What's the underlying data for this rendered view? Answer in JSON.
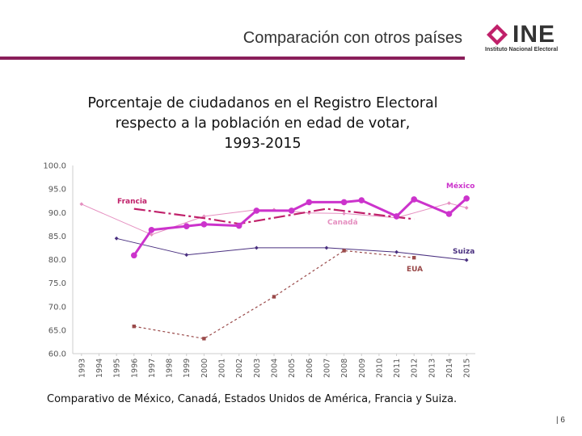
{
  "header": {
    "title": "Comparación con otros países",
    "logo_text": "INE",
    "logo_subtitle": "Instituto Nacional Electoral",
    "accent_color": "#8a1e5a"
  },
  "chart_title_lines": [
    "Porcentaje de ciudadanos en el Registro Electoral",
    "respecto a la población en edad de votar,",
    "1993-2015"
  ],
  "caption": "Comparativo de México, Canadá, Estados Unidos de América, Francia y Suiza.",
  "page_number": "| 6",
  "chart_data": {
    "type": "line",
    "title": "Porcentaje de ciudadanos en el Registro Electoral respecto a la población en edad de votar, 1993-2015",
    "xlabel": "",
    "ylabel": "",
    "ylim": [
      60,
      100
    ],
    "yticks": [
      "60.0",
      "65.0",
      "70.0",
      "75.0",
      "80.0",
      "85.0",
      "90.0",
      "95.0",
      "100.0"
    ],
    "x": [
      "1993",
      "1994",
      "1995",
      "1996",
      "1997",
      "1998",
      "1999",
      "2000",
      "2001",
      "2002",
      "2003",
      "2004",
      "2005",
      "2006",
      "2007",
      "2008",
      "2009",
      "2010",
      "2011",
      "2012",
      "2013",
      "2014",
      "2015"
    ],
    "series": [
      {
        "name": "México",
        "color": "#cc33cc",
        "style": "solid-bold",
        "points": [
          [
            1996,
            80.9
          ],
          [
            1997,
            86.3
          ],
          [
            1999,
            87.1
          ],
          [
            2000,
            87.5
          ],
          [
            2002,
            87.2
          ],
          [
            2003,
            90.4
          ],
          [
            2005,
            90.4
          ],
          [
            2006,
            92.2
          ],
          [
            2008,
            92.2
          ],
          [
            2009,
            92.6
          ],
          [
            2011,
            89.2
          ],
          [
            2012,
            92.8
          ],
          [
            2014,
            89.7
          ],
          [
            2015,
            93.0
          ]
        ]
      },
      {
        "name": "Francia",
        "color": "#c0206a",
        "style": "dashdot",
        "points": [
          [
            1996,
            90.8
          ],
          [
            2000,
            88.8
          ],
          [
            2002,
            87.6
          ],
          [
            2007,
            90.8
          ],
          [
            2012,
            88.6
          ]
        ]
      },
      {
        "name": "Canadá",
        "color": "#e58fc0",
        "style": "thin",
        "points": [
          [
            1993,
            91.8
          ],
          [
            1997,
            85.3
          ],
          [
            2000,
            89.2
          ],
          [
            2003,
            90.6
          ],
          [
            2004,
            90.6
          ],
          [
            2006,
            89.9
          ],
          [
            2008,
            89.8
          ],
          [
            2011,
            88.9
          ],
          [
            2014,
            92.0
          ],
          [
            2015,
            91.0
          ]
        ]
      },
      {
        "name": "Suiza",
        "color": "#4a3080",
        "style": "thin",
        "points": [
          [
            1995,
            84.5
          ],
          [
            1999,
            81.0
          ],
          [
            2003,
            82.5
          ],
          [
            2007,
            82.5
          ],
          [
            2011,
            81.6
          ],
          [
            2015,
            79.9
          ]
        ]
      },
      {
        "name": "EUA",
        "color": "#9a4a4a",
        "style": "dashed",
        "points": [
          [
            1996,
            65.8
          ],
          [
            2000,
            63.2
          ],
          [
            2004,
            72.1
          ],
          [
            2008,
            81.9
          ],
          [
            2012,
            80.4
          ]
        ]
      }
    ]
  }
}
